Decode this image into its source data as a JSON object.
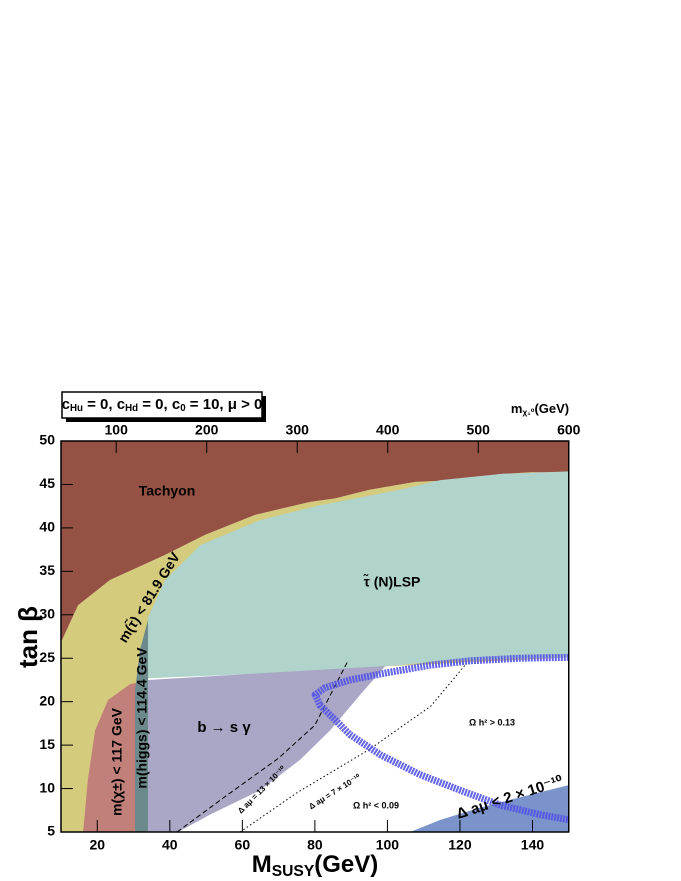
{
  "chart_data": {
    "type": "region",
    "box_label": [
      {
        "t": "c"
      },
      {
        "sub": "Hu"
      },
      {
        "t": " = 0, c"
      },
      {
        "sub": "Hd"
      },
      {
        "t": " = 0, c"
      },
      {
        "sub": "0"
      },
      {
        "t": " = 10, μ > 0"
      }
    ],
    "x_label": [
      {
        "t": "M"
      },
      {
        "sub": "SUSY"
      },
      {
        "t": "(GeV)"
      }
    ],
    "y_label": "tan β",
    "x2_label": [
      {
        "t": "m"
      },
      {
        "sub": "χ₁⁰"
      },
      {
        "t": "(GeV)"
      }
    ],
    "xlim": [
      10,
      150
    ],
    "ylim": [
      5,
      50
    ],
    "xticks": [
      20,
      40,
      60,
      80,
      100,
      120,
      140
    ],
    "yticks": [
      5,
      10,
      15,
      20,
      25,
      30,
      35,
      40,
      45,
      50
    ],
    "x2lim": [
      39,
      600
    ],
    "x2ticks": [
      100,
      200,
      300,
      400,
      500,
      600
    ],
    "regions": [
      {
        "name": "m(τ̃) < 81.9 GeV",
        "color": "#d5cb7c",
        "x": [
          10,
          10.3,
          14.7,
          23.5,
          38.7,
          49.7,
          63.5,
          78.7,
          85.6,
          95.2,
          107.7,
          118.7,
          131.1,
          139.4,
          150,
          150,
          34,
          34,
          10
        ],
        "y": [
          27.1,
          27.1,
          31.1,
          34.0,
          36.9,
          39.2,
          41.5,
          43.0,
          43.4,
          44.4,
          45.3,
          45.5,
          46.2,
          46.4,
          46.4,
          25.1,
          22.7,
          5,
          5
        ]
      },
      {
        "name": "Tachyon",
        "color": "#955244",
        "x": [
          10,
          150,
          150,
          139.4,
          131.1,
          118.7,
          107.7,
          95.2,
          85.6,
          78.7,
          63.5,
          49.7,
          38.7,
          23.5,
          14.7,
          10.3,
          10
        ],
        "y": [
          50,
          50,
          46.4,
          46.4,
          46.2,
          45.5,
          45.3,
          44.4,
          43.4,
          43.0,
          41.5,
          39.2,
          36.9,
          34.0,
          31.1,
          27.1,
          27.1
        ]
      },
      {
        "name": "τ̃ (N)LSP",
        "color": "#b0d3cb",
        "x": [
          34,
          38.7,
          48.3,
          64.9,
          81.4,
          103.5,
          114.6,
          131.1,
          150,
          150,
          117.3,
          103.5,
          75.9,
          34
        ],
        "y": [
          29.7,
          34.0,
          38.0,
          40.9,
          42.6,
          44.4,
          45.5,
          46.2,
          46.5,
          25.1,
          24.8,
          24.2,
          23.4,
          22.7
        ]
      },
      {
        "name": "m(χ±) < 117 GeV",
        "color": "#c1807a",
        "x": [
          16.1,
          17.4,
          19.4,
          23.0,
          29.0,
          34,
          34
        ],
        "y": [
          5,
          11.0,
          16.7,
          20.2,
          22.0,
          22.5,
          5
        ]
      },
      {
        "name": "m(higgs) < 114.4 GeV",
        "color": "#6c8a8b",
        "x": [
          30.4,
          30.4,
          31.8,
          34,
          34
        ],
        "y": [
          5,
          21.3,
          26.0,
          29.4,
          5
        ]
      },
      {
        "name": "b → s γ",
        "color": "#a9a6c6",
        "x": [
          34,
          62.1,
          99.4,
          92.5,
          84.2,
          75.9,
          64.9,
          51.1,
          42.3,
          34
        ],
        "y": [
          22.5,
          23.2,
          24.1,
          20.8,
          16.7,
          13.3,
          9.8,
          7.0,
          5,
          5
        ]
      },
      {
        "name": "Δ aμ < 2 × 10⁻¹⁰",
        "color": "#7a93cb",
        "x": [
          106.3,
          114.6,
          125.6,
          136.6,
          150,
          150
        ],
        "y": [
          5,
          6.4,
          7.8,
          9.0,
          10.4,
          5
        ]
      }
    ],
    "lines": [
      {
        "name": "Δ aμ = 13 × 10⁻¹⁰",
        "dash": "dashed",
        "x": [
          42,
          55,
          70,
          80,
          89
        ],
        "y": [
          5,
          9,
          13.5,
          17.3,
          24.6
        ]
      },
      {
        "name": "Δ aμ = 7 × 10⁻¹⁰",
        "dash": "dotted",
        "x": [
          59.4,
          75,
          95,
          112,
          121.4
        ],
        "y": [
          5,
          9.5,
          14.5,
          19.5,
          24.2
        ]
      }
    ],
    "band": {
      "color": "#5353e6",
      "x": [
        150,
        136.6,
        122.8,
        111.8,
        100.8,
        89.7,
        82.8,
        80.1,
        81.4,
        85.6,
        89.7,
        98.0,
        109.0,
        120.1,
        131.1,
        142.1,
        150
      ],
      "y": [
        25.1,
        25.0,
        24.7,
        24.2,
        23.4,
        22.5,
        21.6,
        20.8,
        19.6,
        17.9,
        16.2,
        13.9,
        11.6,
        9.8,
        8.1,
        7.0,
        6.4
      ]
    },
    "annotations": [
      "Ω h² > 0.13",
      "Ω h² < 0.09"
    ]
  }
}
